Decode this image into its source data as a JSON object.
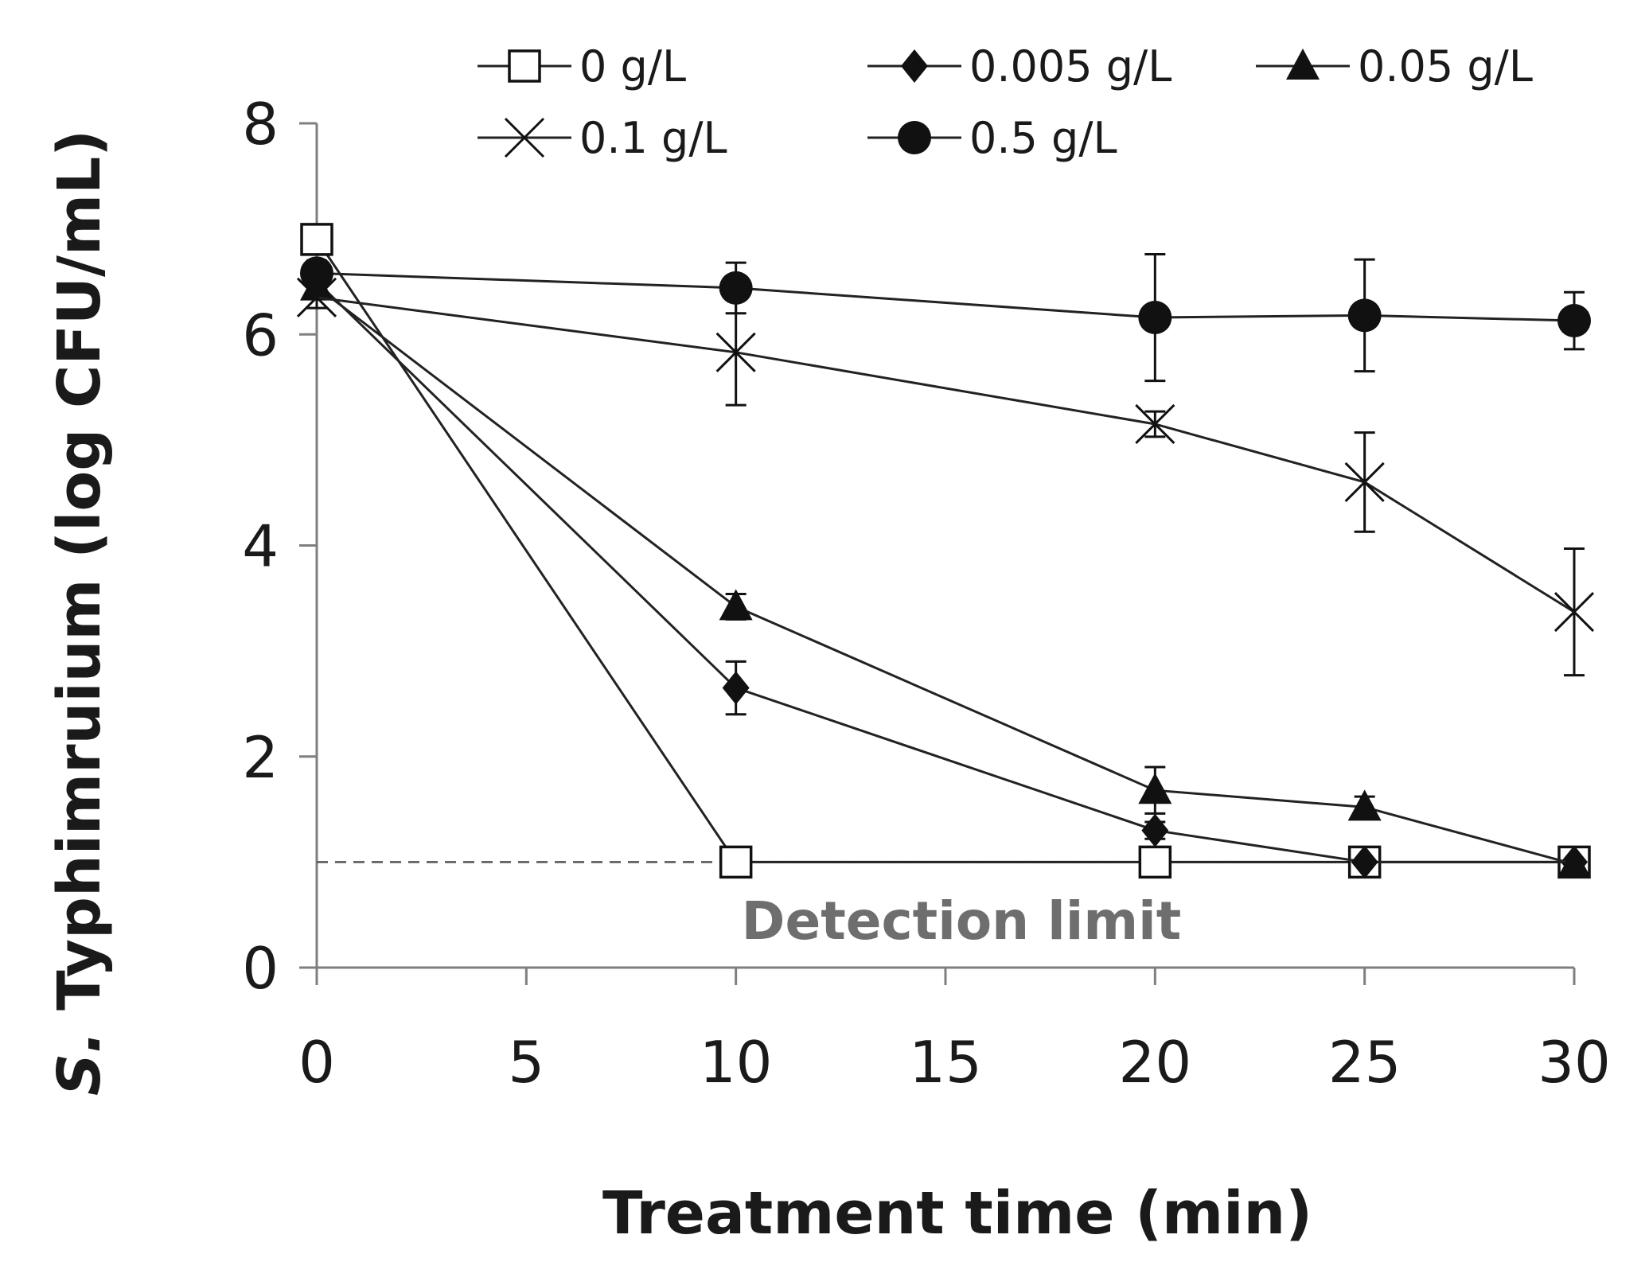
{
  "chart_data": {
    "type": "line",
    "title": "",
    "xlabel": "Treatment time (min)",
    "ylabel_italic": "S.",
    "ylabel_rest": " Typhimruium  (log CFU/mL)",
    "xlim": [
      0,
      30
    ],
    "ylim": [
      0,
      8
    ],
    "xticks": [
      0,
      5,
      10,
      15,
      20,
      25,
      30
    ],
    "xtick_labels": [
      "0",
      "5",
      "10",
      "15",
      "20",
      "25",
      "30"
    ],
    "yticks": [
      0,
      2,
      4,
      6,
      8
    ],
    "ytick_labels": [
      "0",
      "2",
      "4",
      "6",
      "8"
    ],
    "grid": false,
    "legend_position": "top",
    "series": [
      {
        "name": "0 g/L",
        "marker": "square-open",
        "x": [
          0,
          10,
          20,
          25,
          30
        ],
        "y": [
          6.9,
          1.0,
          1.0,
          1.0,
          1.0
        ],
        "err": [
          0.1,
          0,
          0,
          0,
          0
        ]
      },
      {
        "name": "0.005 g/L",
        "marker": "diamond",
        "x": [
          0,
          10,
          20,
          25,
          30
        ],
        "y": [
          6.5,
          2.65,
          1.3,
          1.0,
          1.0
        ],
        "err": [
          0.1,
          0.25,
          0.08,
          0,
          0
        ]
      },
      {
        "name": "0.05 g/L",
        "marker": "triangle",
        "x": [
          0,
          10,
          20,
          25,
          30
        ],
        "y": [
          6.45,
          3.42,
          1.68,
          1.52,
          0.98
        ],
        "err": [
          0.1,
          0.12,
          0.22,
          0.1,
          0
        ]
      },
      {
        "name": "0.1 g/L",
        "marker": "x",
        "x": [
          0,
          10,
          20,
          25,
          30
        ],
        "y": [
          6.35,
          5.83,
          5.15,
          4.6,
          3.37
        ],
        "err": [
          0.1,
          0.5,
          0.12,
          0.47,
          0.6
        ]
      },
      {
        "name": "0.5 g/L",
        "marker": "circle",
        "x": [
          0,
          10,
          20,
          25,
          30
        ],
        "y": [
          6.58,
          6.44,
          6.16,
          6.18,
          6.13
        ],
        "err": [
          0.12,
          0.24,
          0.6,
          0.53,
          0.27
        ]
      }
    ],
    "reference_line": {
      "y": 1.0,
      "style": "dashed",
      "label": "Detection limit"
    }
  }
}
